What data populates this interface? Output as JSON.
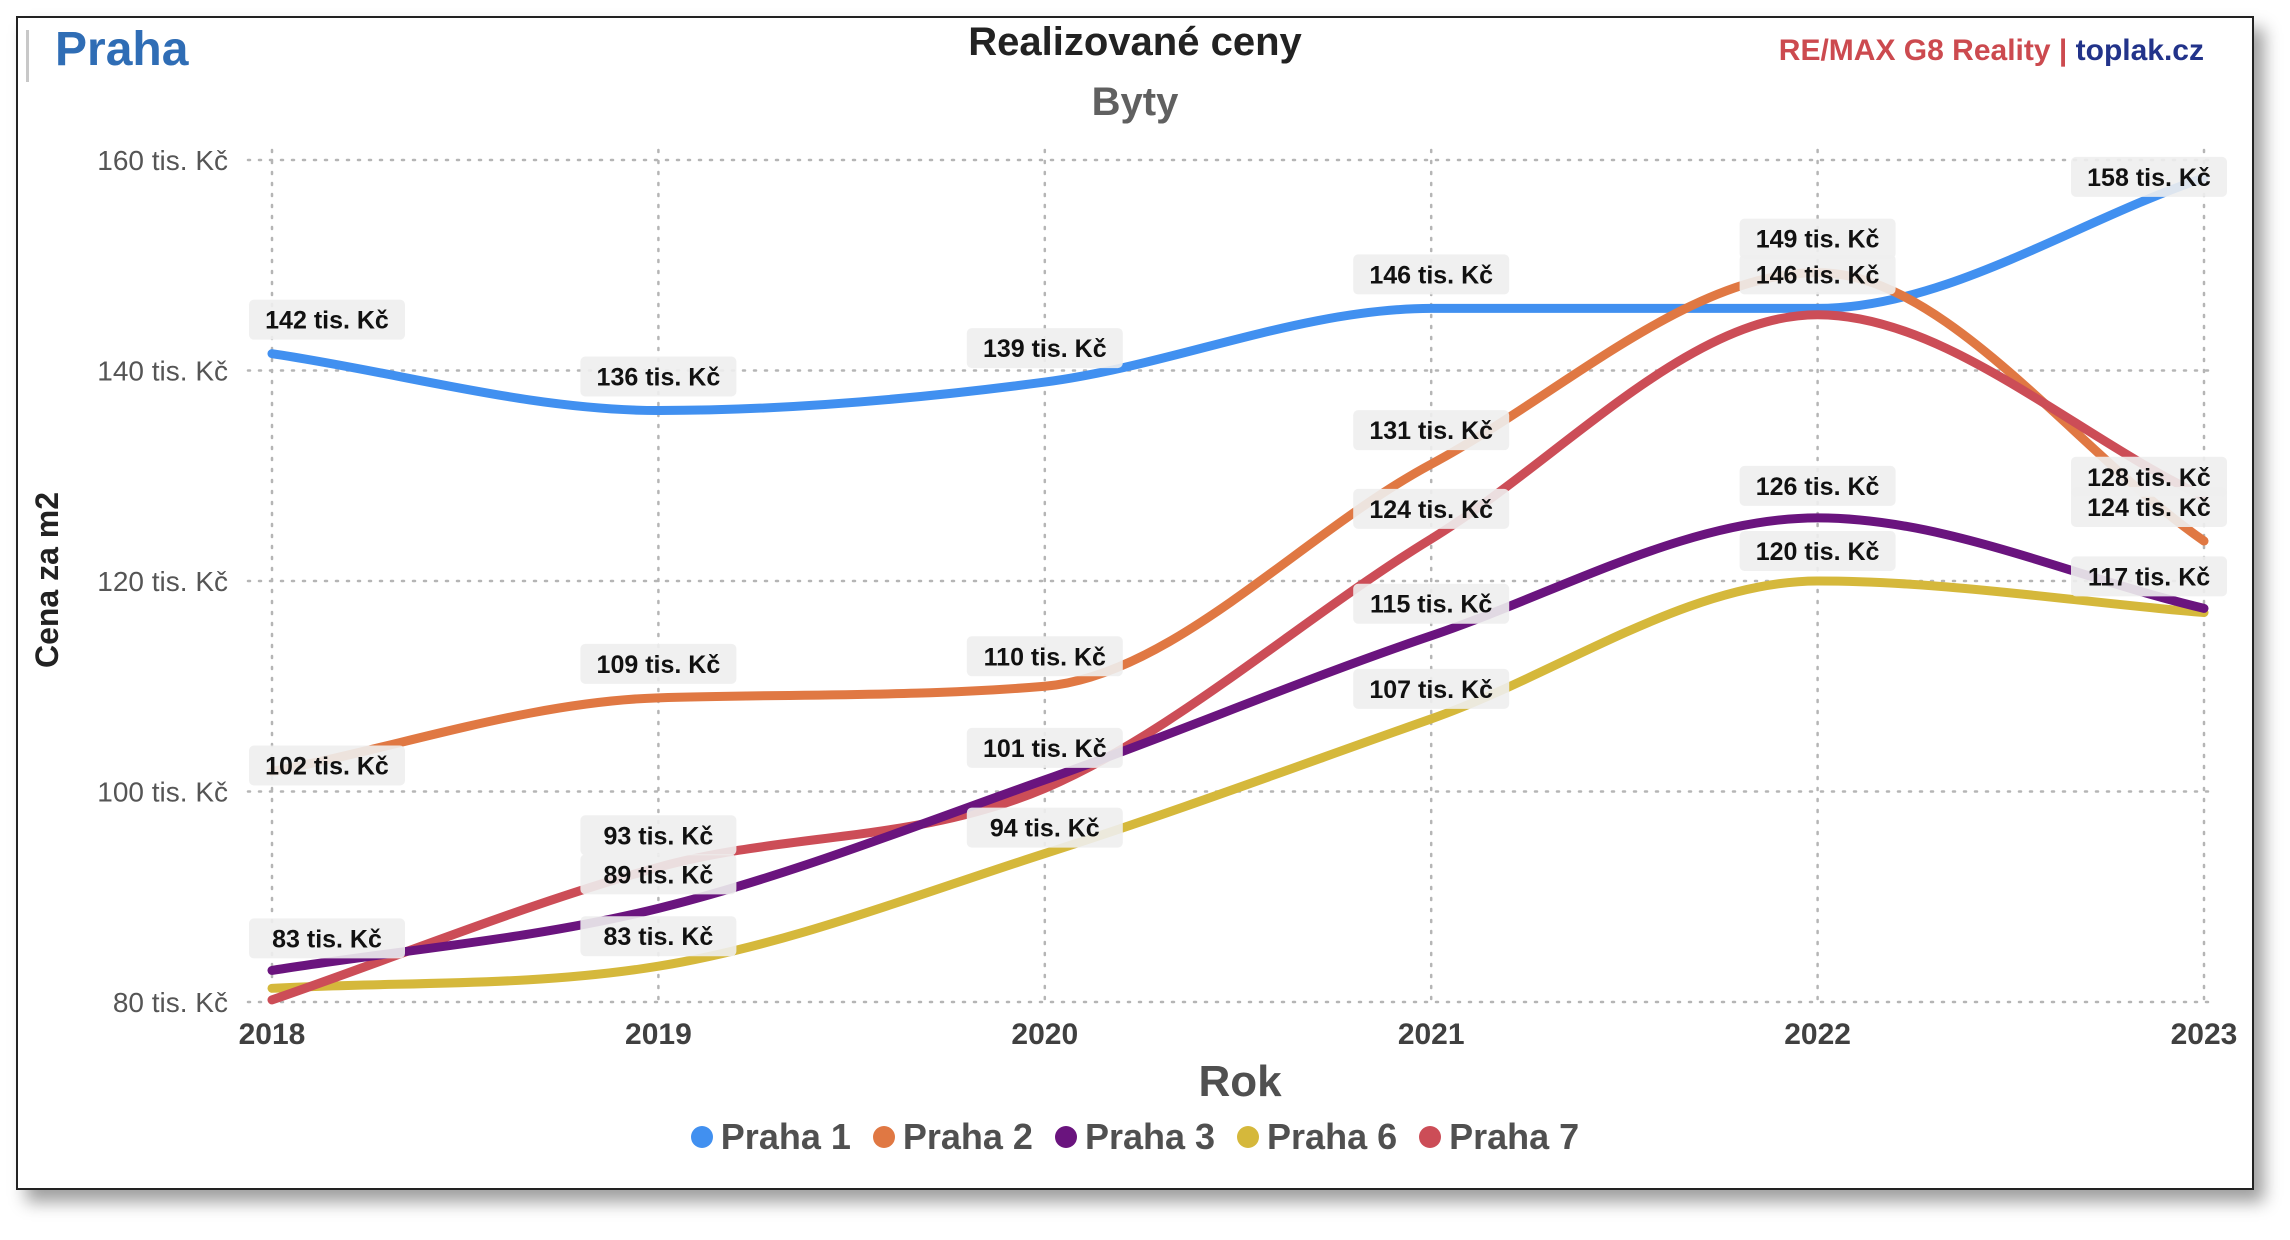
{
  "header": {
    "city": "Praha",
    "brand_part1": "RE/MAX G8 Reality",
    "brand_separator": " | ",
    "brand_part2": "toplak.cz"
  },
  "chart_data": {
    "type": "line",
    "title": "Realizované ceny",
    "subtitle": "Byty",
    "xlabel": "Rok",
    "ylabel": "Cena za m2",
    "categories": [
      "2018",
      "2019",
      "2020",
      "2021",
      "2022",
      "2023"
    ],
    "ylim": [
      80,
      160
    ],
    "y_ticks": [
      {
        "value": 80,
        "label": "80 tis. Kč"
      },
      {
        "value": 100,
        "label": "100 tis. Kč"
      },
      {
        "value": 120,
        "label": "120 tis. Kč"
      },
      {
        "value": 140,
        "label": "140 tis. Kč"
      },
      {
        "value": 160,
        "label": "160 tis. Kč"
      }
    ],
    "grid": true,
    "legend_position": "bottom",
    "series": [
      {
        "name": "Praha 1",
        "color": "#4190f0",
        "values": [
          141.6,
          136.2,
          138.9,
          145.9,
          145.9,
          158.3
        ],
        "labels": [
          "142 tis. Kč",
          "136 tis. Kč",
          "139 tis. Kč",
          "146 tis. Kč",
          "146 tis. Kč",
          "158 tis. Kč"
        ]
      },
      {
        "name": "Praha 2",
        "color": "#e07843",
        "values": [
          101.9,
          108.9,
          110.0,
          131.1,
          149.3,
          123.8
        ],
        "labels": [
          "102 tis. Kč",
          "109 tis. Kč",
          "110 tis. Kč",
          "131 tis. Kč",
          "149 tis. Kč",
          "124 tis. Kč"
        ]
      },
      {
        "name": "Praha 3",
        "color": "#6a147e",
        "values": [
          83.0,
          88.9,
          101.1,
          114.8,
          126.0,
          117.4
        ],
        "labels": [
          "83 tis. Kč",
          "89 tis. Kč",
          "101 tis. Kč",
          "115 tis. Kč",
          "126 tis. Kč",
          "117 tis. Kč"
        ]
      },
      {
        "name": "Praha 6",
        "color": "#d5b83b",
        "values": [
          81.3,
          83.4,
          94.1,
          106.9,
          120.0,
          117.0
        ],
        "labels": [
          "",
          "83 tis. Kč",
          "94 tis. Kč",
          "107 tis. Kč",
          "120 tis. Kč",
          ""
        ]
      },
      {
        "name": "Praha 7",
        "color": "#cc4d57",
        "values": [
          80.2,
          92.8,
          100.3,
          124.0,
          145.3,
          128.0
        ],
        "labels": [
          "",
          "93 tis. Kč",
          "",
          "124 tis. Kč",
          "",
          "128 tis. Kč"
        ]
      }
    ],
    "label_offsets": [
      [
        -34,
        -34,
        -34,
        -34,
        -34,
        -1
      ],
      [
        -6,
        -34,
        -30,
        -34,
        -34,
        -34
      ],
      [
        -32,
        -34,
        -32,
        -32,
        -32,
        -32
      ],
      [
        0,
        -30,
        -26,
        -30,
        -30,
        0
      ],
      [
        0,
        -32,
        0,
        -30,
        0,
        -20
      ]
    ]
  }
}
